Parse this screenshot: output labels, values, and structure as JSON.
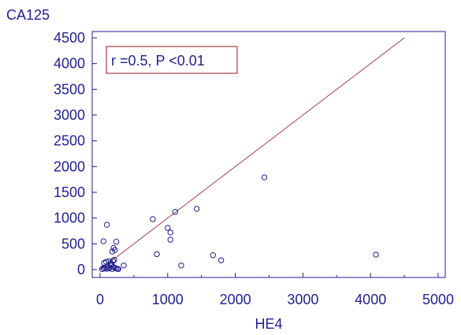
{
  "chart_data": {
    "type": "scatter",
    "title": "",
    "xlabel": "HE4",
    "ylabel": "CA125",
    "xlim": [
      0,
      5000
    ],
    "ylim": [
      0,
      4500
    ],
    "xticks": [
      0,
      1000,
      2000,
      3000,
      4000,
      5000
    ],
    "yticks": [
      0,
      500,
      1000,
      1500,
      2000,
      2500,
      3000,
      3500,
      4000,
      4500
    ],
    "grid": false,
    "annotation": "r =0.5, P <0.01",
    "colors": {
      "axis": "#1f1f8f",
      "points": "#1f1f8f",
      "fit_line": "#8b1a1a",
      "annotation_border": "#8b1a1a"
    },
    "fit_line": {
      "x": [
        0,
        4500
      ],
      "y": [
        0,
        4500
      ]
    },
    "points": [
      {
        "x": 30,
        "y": 10
      },
      {
        "x": 50,
        "y": 30
      },
      {
        "x": 60,
        "y": 20
      },
      {
        "x": 80,
        "y": 40
      },
      {
        "x": 100,
        "y": 15
      },
      {
        "x": 110,
        "y": 60
      },
      {
        "x": 130,
        "y": 25
      },
      {
        "x": 150,
        "y": 40
      },
      {
        "x": 160,
        "y": 80
      },
      {
        "x": 180,
        "y": 10
      },
      {
        "x": 200,
        "y": 50
      },
      {
        "x": 220,
        "y": 30
      },
      {
        "x": 240,
        "y": 20
      },
      {
        "x": 260,
        "y": 15
      },
      {
        "x": 270,
        "y": 10
      },
      {
        "x": 60,
        "y": 130
      },
      {
        "x": 90,
        "y": 150
      },
      {
        "x": 130,
        "y": 160
      },
      {
        "x": 150,
        "y": 120
      },
      {
        "x": 170,
        "y": 100
      },
      {
        "x": 190,
        "y": 170
      },
      {
        "x": 210,
        "y": 190
      },
      {
        "x": 180,
        "y": 350
      },
      {
        "x": 200,
        "y": 420
      },
      {
        "x": 220,
        "y": 380
      },
      {
        "x": 240,
        "y": 540
      },
      {
        "x": 50,
        "y": 550
      },
      {
        "x": 100,
        "y": 870
      },
      {
        "x": 350,
        "y": 80
      },
      {
        "x": 780,
        "y": 980
      },
      {
        "x": 840,
        "y": 300
      },
      {
        "x": 1000,
        "y": 810
      },
      {
        "x": 1040,
        "y": 720
      },
      {
        "x": 1040,
        "y": 580
      },
      {
        "x": 1110,
        "y": 1120
      },
      {
        "x": 1200,
        "y": 80
      },
      {
        "x": 1430,
        "y": 1180
      },
      {
        "x": 1670,
        "y": 280
      },
      {
        "x": 1790,
        "y": 180
      },
      {
        "x": 2430,
        "y": 1790
      },
      {
        "x": 4080,
        "y": 290
      }
    ]
  }
}
